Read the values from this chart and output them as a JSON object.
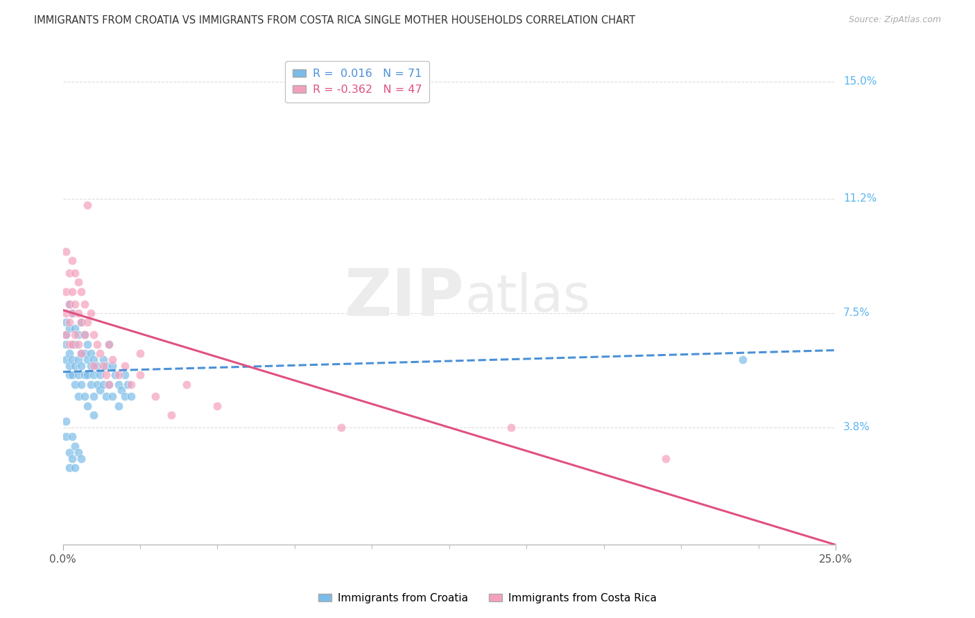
{
  "title": "IMMIGRANTS FROM CROATIA VS IMMIGRANTS FROM COSTA RICA SINGLE MOTHER HOUSEHOLDS CORRELATION CHART",
  "source": "Source: ZipAtlas.com",
  "xlabel_croatia": "Immigrants from Croatia",
  "xlabel_costarica": "Immigrants from Costa Rica",
  "ylabel": "Single Mother Households",
  "xlim": [
    0.0,
    0.25
  ],
  "ylim": [
    0.0,
    0.16
  ],
  "yticks": [
    0.038,
    0.075,
    0.112,
    0.15
  ],
  "ytick_labels": [
    "3.8%",
    "7.5%",
    "11.2%",
    "15.0%"
  ],
  "r_croatia": 0.016,
  "n_croatia": 71,
  "r_costarica": -0.362,
  "n_costarica": 47,
  "color_croatia": "#7bbce8",
  "color_costarica": "#f4a0bc",
  "color_croatia_line": "#4a90d9",
  "color_costarica_line": "#e05080",
  "color_right_labels": "#5ab4f0",
  "scatter_croatia": [
    [
      0.001,
      0.068
    ],
    [
      0.001,
      0.072
    ],
    [
      0.001,
      0.065
    ],
    [
      0.001,
      0.06
    ],
    [
      0.002,
      0.078
    ],
    [
      0.002,
      0.062
    ],
    [
      0.002,
      0.055
    ],
    [
      0.002,
      0.058
    ],
    [
      0.002,
      0.07
    ],
    [
      0.003,
      0.075
    ],
    [
      0.003,
      0.065
    ],
    [
      0.003,
      0.06
    ],
    [
      0.003,
      0.055
    ],
    [
      0.004,
      0.07
    ],
    [
      0.004,
      0.065
    ],
    [
      0.004,
      0.058
    ],
    [
      0.004,
      0.052
    ],
    [
      0.005,
      0.068
    ],
    [
      0.005,
      0.06
    ],
    [
      0.005,
      0.055
    ],
    [
      0.005,
      0.048
    ],
    [
      0.006,
      0.072
    ],
    [
      0.006,
      0.062
    ],
    [
      0.006,
      0.058
    ],
    [
      0.006,
      0.052
    ],
    [
      0.007,
      0.068
    ],
    [
      0.007,
      0.062
    ],
    [
      0.007,
      0.055
    ],
    [
      0.007,
      0.048
    ],
    [
      0.008,
      0.065
    ],
    [
      0.008,
      0.06
    ],
    [
      0.008,
      0.055
    ],
    [
      0.008,
      0.045
    ],
    [
      0.009,
      0.062
    ],
    [
      0.009,
      0.058
    ],
    [
      0.009,
      0.052
    ],
    [
      0.01,
      0.06
    ],
    [
      0.01,
      0.055
    ],
    [
      0.01,
      0.048
    ],
    [
      0.01,
      0.042
    ],
    [
      0.011,
      0.058
    ],
    [
      0.011,
      0.052
    ],
    [
      0.012,
      0.055
    ],
    [
      0.012,
      0.05
    ],
    [
      0.013,
      0.06
    ],
    [
      0.013,
      0.052
    ],
    [
      0.014,
      0.058
    ],
    [
      0.014,
      0.048
    ],
    [
      0.015,
      0.065
    ],
    [
      0.015,
      0.052
    ],
    [
      0.016,
      0.058
    ],
    [
      0.016,
      0.048
    ],
    [
      0.017,
      0.055
    ],
    [
      0.018,
      0.052
    ],
    [
      0.018,
      0.045
    ],
    [
      0.019,
      0.05
    ],
    [
      0.02,
      0.055
    ],
    [
      0.02,
      0.048
    ],
    [
      0.021,
      0.052
    ],
    [
      0.022,
      0.048
    ],
    [
      0.001,
      0.04
    ],
    [
      0.001,
      0.035
    ],
    [
      0.002,
      0.03
    ],
    [
      0.002,
      0.025
    ],
    [
      0.003,
      0.035
    ],
    [
      0.003,
      0.028
    ],
    [
      0.004,
      0.032
    ],
    [
      0.004,
      0.025
    ],
    [
      0.005,
      0.03
    ],
    [
      0.006,
      0.028
    ],
    [
      0.22,
      0.06
    ]
  ],
  "scatter_costarica": [
    [
      0.001,
      0.095
    ],
    [
      0.001,
      0.082
    ],
    [
      0.001,
      0.075
    ],
    [
      0.001,
      0.068
    ],
    [
      0.002,
      0.088
    ],
    [
      0.002,
      0.078
    ],
    [
      0.002,
      0.072
    ],
    [
      0.002,
      0.065
    ],
    [
      0.003,
      0.092
    ],
    [
      0.003,
      0.082
    ],
    [
      0.003,
      0.075
    ],
    [
      0.003,
      0.065
    ],
    [
      0.004,
      0.088
    ],
    [
      0.004,
      0.078
    ],
    [
      0.004,
      0.068
    ],
    [
      0.005,
      0.085
    ],
    [
      0.005,
      0.075
    ],
    [
      0.005,
      0.065
    ],
    [
      0.006,
      0.082
    ],
    [
      0.006,
      0.072
    ],
    [
      0.006,
      0.062
    ],
    [
      0.007,
      0.078
    ],
    [
      0.007,
      0.068
    ],
    [
      0.008,
      0.11
    ],
    [
      0.008,
      0.072
    ],
    [
      0.009,
      0.075
    ],
    [
      0.01,
      0.068
    ],
    [
      0.01,
      0.058
    ],
    [
      0.011,
      0.065
    ],
    [
      0.012,
      0.062
    ],
    [
      0.013,
      0.058
    ],
    [
      0.014,
      0.055
    ],
    [
      0.015,
      0.065
    ],
    [
      0.015,
      0.052
    ],
    [
      0.016,
      0.06
    ],
    [
      0.018,
      0.055
    ],
    [
      0.02,
      0.058
    ],
    [
      0.022,
      0.052
    ],
    [
      0.025,
      0.062
    ],
    [
      0.025,
      0.055
    ],
    [
      0.03,
      0.048
    ],
    [
      0.035,
      0.042
    ],
    [
      0.04,
      0.052
    ],
    [
      0.05,
      0.045
    ],
    [
      0.09,
      0.038
    ],
    [
      0.145,
      0.038
    ],
    [
      0.195,
      0.028
    ]
  ],
  "croatia_line": {
    "x0": 0.0,
    "y0": 0.056,
    "x1": 0.25,
    "y1": 0.063
  },
  "costarica_line": {
    "x0": 0.0,
    "y0": 0.076,
    "x1": 0.25,
    "y1": 0.0
  }
}
